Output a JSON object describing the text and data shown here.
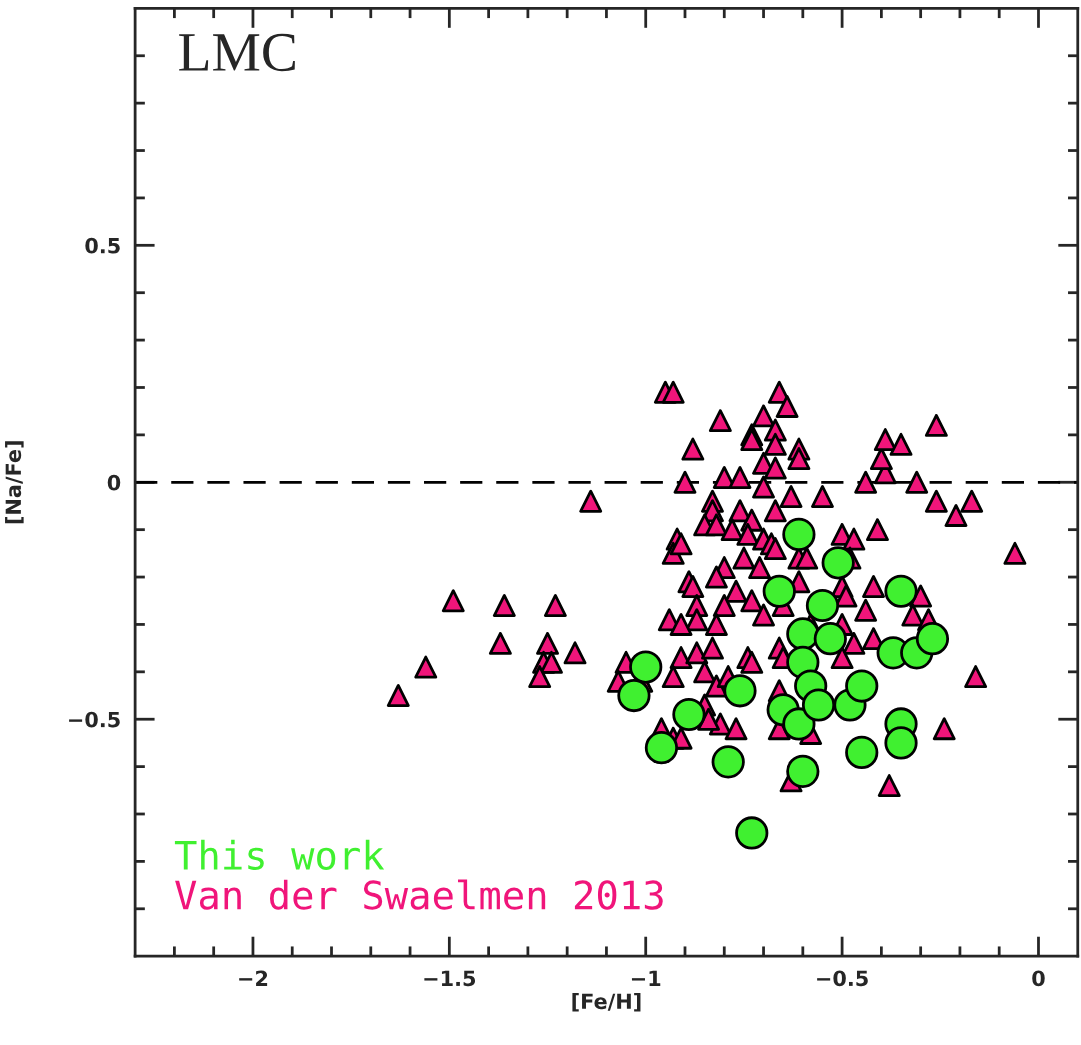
{
  "chart_data": {
    "type": "scatter",
    "title": "LMC",
    "xlabel": "[Fe/H]",
    "ylabel": "[Na/Fe]",
    "xlim": [
      -2.3,
      0.1
    ],
    "ylim": [
      -1.0,
      1.0
    ],
    "xticks": [
      {
        "value": -2.2,
        "label": null
      },
      {
        "value": -2.1,
        "label": null
      },
      {
        "value": -2,
        "label": "−2"
      },
      {
        "value": -1.9,
        "label": null
      },
      {
        "value": -1.8,
        "label": null
      },
      {
        "value": -1.7,
        "label": null
      },
      {
        "value": -1.6,
        "label": null
      },
      {
        "value": -1.5,
        "label": "−1.5"
      },
      {
        "value": -1.4,
        "label": null
      },
      {
        "value": -1.3,
        "label": null
      },
      {
        "value": -1.2,
        "label": null
      },
      {
        "value": -1.1,
        "label": null
      },
      {
        "value": -1,
        "label": "−1"
      },
      {
        "value": -0.9,
        "label": null
      },
      {
        "value": -0.8,
        "label": null
      },
      {
        "value": -0.7,
        "label": null
      },
      {
        "value": -0.6,
        "label": null
      },
      {
        "value": -0.5,
        "label": "−0.5"
      },
      {
        "value": -0.4,
        "label": null
      },
      {
        "value": -0.3,
        "label": null
      },
      {
        "value": -0.2,
        "label": null
      },
      {
        "value": -0.1,
        "label": null
      },
      0
    ],
    "yticks": [
      {
        "value": -0.9,
        "label": null
      },
      {
        "value": -0.8,
        "label": null
      },
      {
        "value": -0.7,
        "label": null
      },
      {
        "value": -0.6,
        "label": null
      },
      {
        "value": -0.5,
        "label": "−0.5"
      },
      {
        "value": -0.4,
        "label": null
      },
      {
        "value": -0.3,
        "label": null
      },
      {
        "value": -0.2,
        "label": null
      },
      {
        "value": -0.1,
        "label": null
      },
      0,
      {
        "value": 0.1,
        "label": null
      },
      {
        "value": 0.2,
        "label": null
      },
      {
        "value": 0.3,
        "label": null
      },
      {
        "value": 0.4,
        "label": null
      },
      0.5,
      {
        "value": 0.6,
        "label": null
      },
      {
        "value": 0.7,
        "label": null
      },
      {
        "value": 0.8,
        "label": null
      },
      {
        "value": 0.9,
        "label": null
      }
    ],
    "grid": false,
    "legend": "bottom left",
    "ref_lines": [
      {
        "axis": "y",
        "value": 0,
        "color": "#000000",
        "line_style": "dashed"
      }
    ],
    "series": [
      {
        "name": "This work",
        "color": "#40f030",
        "marker": "circle",
        "x": [
          -1.0,
          -1.03,
          -0.96,
          -0.89,
          -0.76,
          -0.79,
          -0.73,
          -0.61,
          -0.66,
          -0.65,
          -0.61,
          -0.6,
          -0.6,
          -0.6,
          -0.58,
          -0.56,
          -0.55,
          -0.53,
          -0.51,
          -0.48,
          -0.45,
          -0.45,
          -0.35,
          -0.37,
          -0.31,
          -0.27,
          -0.35,
          -0.35
        ],
        "values": [
          -0.39,
          -0.45,
          -0.56,
          -0.49,
          -0.44,
          -0.59,
          -0.74,
          -0.11,
          -0.23,
          -0.48,
          -0.51,
          -0.61,
          -0.32,
          -0.38,
          -0.43,
          -0.47,
          -0.26,
          -0.33,
          -0.17,
          -0.47,
          -0.43,
          -0.57,
          -0.23,
          -0.36,
          -0.36,
          -0.33,
          -0.51,
          -0.55
        ]
      },
      {
        "name": "Van der Swaelmen 2013",
        "color": "#f0157a",
        "marker": "triangle",
        "x": [
          -1.63,
          -1.56,
          -1.49,
          -1.36,
          -1.37,
          -1.23,
          -1.25,
          -1.18,
          -1.26,
          -1.24,
          -1.27,
          -1.14,
          -1.05,
          -1.07,
          -1.01,
          -0.96,
          -0.93,
          -0.94,
          -0.91,
          -0.93,
          -0.95,
          -0.93,
          -0.88,
          -0.9,
          -0.92,
          -0.93,
          -0.89,
          -0.66,
          -0.64,
          -0.7,
          -0.81,
          -0.73,
          -0.67,
          -0.73,
          -0.67,
          -0.61,
          -0.61,
          -0.7,
          -0.67,
          -0.8,
          -0.76,
          -0.7,
          -0.63,
          -0.55,
          -0.44,
          -0.39,
          -0.4,
          -0.39,
          -0.35,
          -0.26,
          -0.31,
          -0.26,
          -0.21,
          -0.17,
          -0.06,
          -0.16,
          -0.83,
          -0.83,
          -0.76,
          -0.67,
          -0.85,
          -0.82,
          -0.78,
          -0.73,
          -0.74,
          -0.7,
          -0.68,
          -0.67,
          -0.91,
          -0.5,
          -0.47,
          -0.41,
          -0.8,
          -0.75,
          -0.88,
          -0.82,
          -0.71,
          -0.61,
          -0.59,
          -0.48,
          -0.42,
          -0.3,
          -0.77,
          -0.73,
          -0.8,
          -0.87,
          -0.61,
          -0.5,
          -0.49,
          -0.44,
          -0.32,
          -0.28,
          -0.65,
          -0.7,
          -0.87,
          -0.82,
          -0.91,
          -0.58,
          -0.5,
          -0.42,
          -0.47,
          -0.5,
          -0.66,
          -0.65,
          -0.74,
          -0.73,
          -0.87,
          -0.83,
          -0.85,
          -0.82,
          -0.79,
          -0.66,
          -0.85,
          -0.81,
          -0.77,
          -0.84,
          -0.66,
          -0.58,
          -0.91,
          -0.24,
          -0.38,
          -0.63
        ],
        "values": [
          -0.45,
          -0.39,
          -0.25,
          -0.26,
          -0.34,
          -0.26,
          -0.34,
          -0.36,
          -0.38,
          -0.38,
          -0.41,
          -0.04,
          -0.38,
          -0.42,
          -0.42,
          -0.52,
          -0.54,
          -0.29,
          -0.37,
          -0.41,
          0.19,
          0.19,
          0.07,
          0.0,
          -0.12,
          -0.15,
          -0.21,
          0.19,
          0.16,
          0.14,
          0.13,
          0.1,
          0.11,
          0.09,
          0.08,
          0.07,
          0.05,
          0.04,
          0.03,
          0.01,
          0.01,
          -0.01,
          -0.03,
          -0.03,
          0.0,
          0.02,
          0.05,
          0.09,
          0.08,
          0.12,
          0.0,
          -0.04,
          -0.07,
          -0.04,
          -0.15,
          -0.41,
          -0.04,
          -0.06,
          -0.06,
          -0.06,
          -0.09,
          -0.09,
          -0.1,
          -0.08,
          -0.11,
          -0.12,
          -0.13,
          -0.14,
          -0.13,
          -0.11,
          -0.12,
          -0.1,
          -0.18,
          -0.16,
          -0.22,
          -0.2,
          -0.18,
          -0.16,
          -0.16,
          -0.16,
          -0.22,
          -0.24,
          -0.23,
          -0.25,
          -0.26,
          -0.26,
          -0.21,
          -0.22,
          -0.24,
          -0.27,
          -0.28,
          -0.29,
          -0.26,
          -0.28,
          -0.29,
          -0.3,
          -0.3,
          -0.3,
          -0.3,
          -0.33,
          -0.34,
          -0.37,
          -0.35,
          -0.37,
          -0.37,
          -0.38,
          -0.36,
          -0.35,
          -0.4,
          -0.43,
          -0.41,
          -0.44,
          -0.47,
          -0.51,
          -0.52,
          -0.5,
          -0.52,
          -0.53,
          -0.54,
          -0.52,
          -0.64,
          -0.63
        ]
      }
    ]
  }
}
